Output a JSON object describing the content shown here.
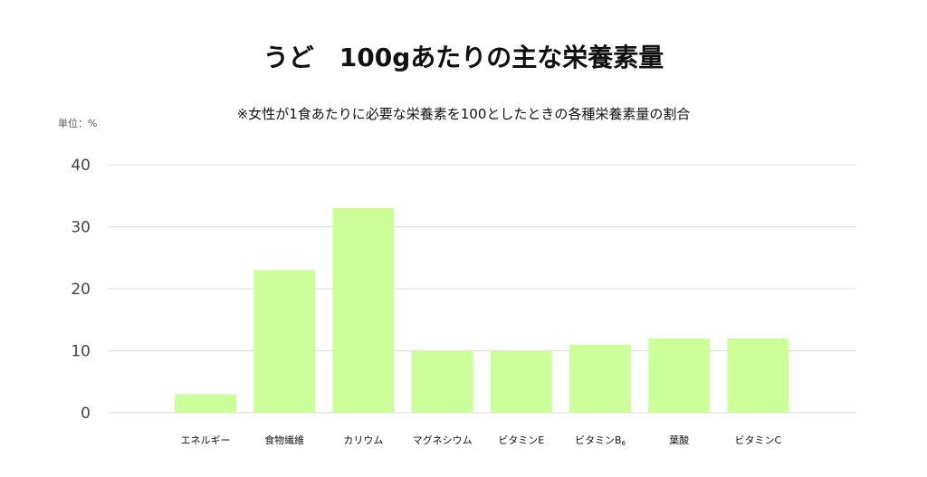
{
  "chart_data": {
    "type": "bar",
    "title": "うど　100gあたりの主な栄養素量",
    "subtitle": "※女性が1食あたりに必要な栄養素を100としたときの各種栄養素量の割合",
    "unit_label": "単位：%",
    "categories": [
      "エネルギー",
      "食物繊維",
      "カリウム",
      "マグネシウム",
      "ビタミンE",
      "ビタミンB6",
      "葉酸",
      "ビタミンC"
    ],
    "values": [
      3,
      23,
      33,
      10,
      10,
      11,
      12,
      12
    ],
    "ylim": [
      0,
      40
    ],
    "yticks": [
      0,
      10,
      20,
      30,
      40
    ],
    "grid": true,
    "legend": "none",
    "bar_color": "#ccff99",
    "grid_color": "#dddddd"
  }
}
